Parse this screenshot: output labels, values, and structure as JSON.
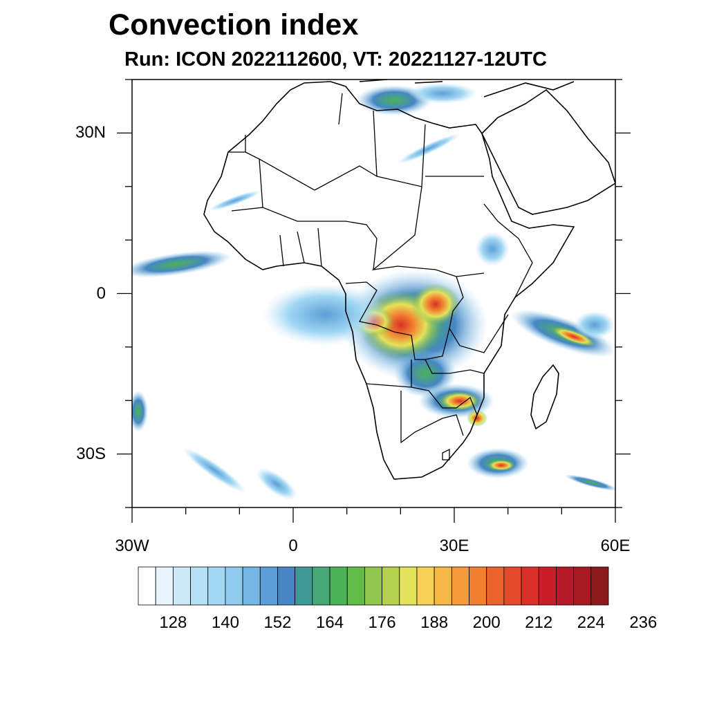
{
  "header": {
    "title": "Convection index",
    "subtitle": "Run: ICON 2022112600,  VT: 20221127-12UTC"
  },
  "map": {
    "lat_labels": [
      "30N",
      "0",
      "30S"
    ],
    "lon_labels": [
      "30W",
      "0",
      "30E",
      "60E"
    ],
    "lat_values": [
      30,
      0,
      -30
    ],
    "lon_values": [
      -30,
      0,
      30,
      60
    ],
    "extent": {
      "lon_min": -30,
      "lon_max": 60,
      "lat_min": -40,
      "lat_max": 40
    }
  },
  "colorbar": {
    "labels": [
      "128",
      "140",
      "152",
      "164",
      "176",
      "188",
      "200",
      "212",
      "224",
      "236"
    ],
    "colors": [
      "#ffffff",
      "#e9f5fd",
      "#cde9f8",
      "#b7e0f6",
      "#a3d8f4",
      "#8fcbef",
      "#76b5e4",
      "#5b9fd6",
      "#4687c3",
      "#419995",
      "#48a878",
      "#4cb257",
      "#63bb47",
      "#91c650",
      "#b6d14f",
      "#e4e25a",
      "#f6d153",
      "#f8b848",
      "#f69a3b",
      "#f27e2f",
      "#eb622b",
      "#e24a2b",
      "#d83128",
      "#c71e29",
      "#b71a27",
      "#a81a22",
      "#8d1a1c"
    ]
  }
}
